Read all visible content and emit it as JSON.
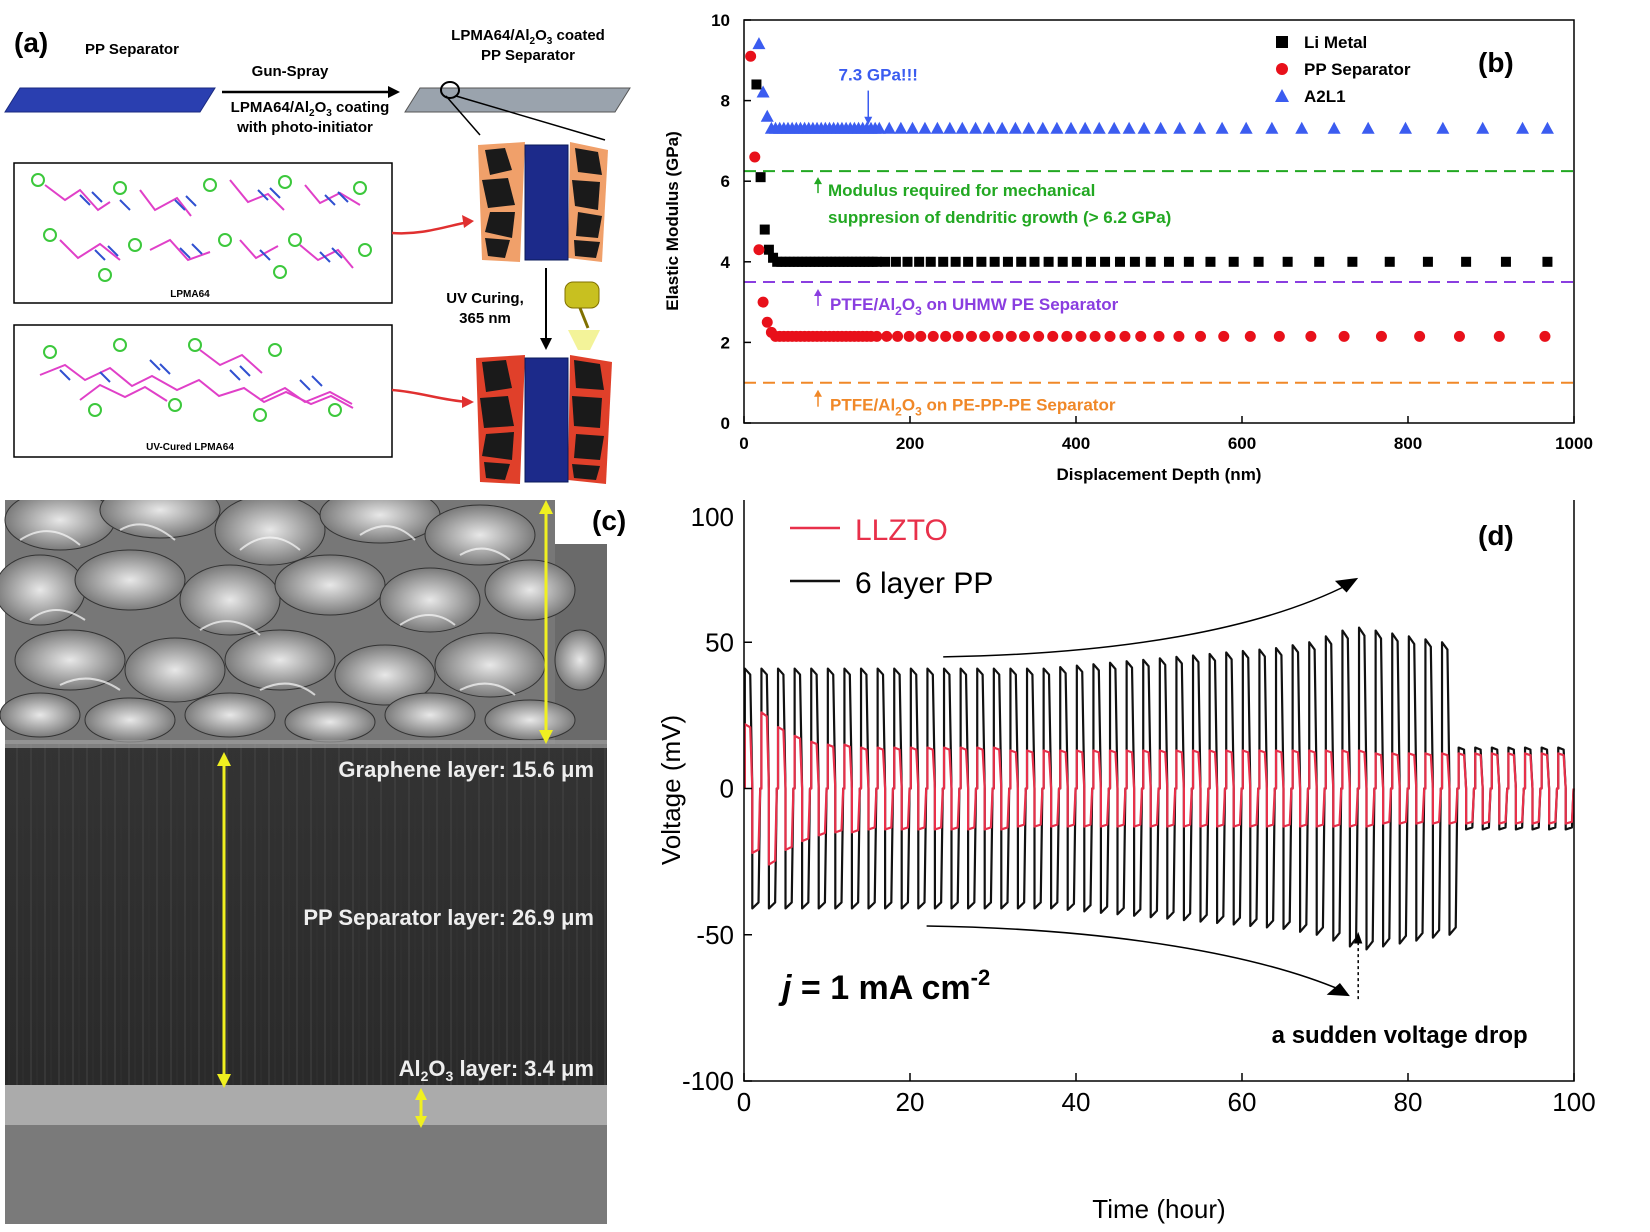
{
  "panel_a": {
    "label": "(a)",
    "pp_separator": "PP Separator",
    "gun_spray": "Gun-Spray",
    "coating_line1": "LPMA64/Al",
    "coating_sub": "2",
    "coating_mid": "O",
    "coating_sub2": "3",
    "coating_end": " coating",
    "coating_line2": "with photo-initiator",
    "coated_line1": "LPMA64/Al",
    "coated_sub": "2",
    "coated_mid": "O",
    "coated_sub2": "3",
    "coated_end": " coated",
    "coated_line2": "PP Separator",
    "box1_label": "LPMA64",
    "box2_label": "UV-Cured LPMA64",
    "uv_line1": "UV Curing,",
    "uv_line2": "365 nm",
    "colors": {
      "separator_blue": "#2a3fb0",
      "coated_gray": "#9aa3ad",
      "shell_orange": "#f0a06a",
      "shell_red": "#e0402a",
      "molecule_pink": "#e040c8",
      "molecule_green": "#3cc83c",
      "molecule_blue": "#3050d0"
    }
  },
  "panel_b_label": "(b)",
  "panel_c": {
    "label": "(c)",
    "graphene": "Graphene layer: 15.6 μm",
    "pp": "PP Separator layer: 26.9 μm",
    "al_prefix": "Al",
    "al_sub1": "2",
    "al_mid": "O",
    "al_sub2": "3",
    "al_suffix": " layer: 3.4 μm",
    "colors": {
      "arrow": "#f0f020"
    }
  },
  "panel_d_label": "(d)",
  "chart_data": [
    {
      "type": "scatter",
      "xlabel": "Displacement Depth (nm)",
      "ylabel": "Elastic Modulus (GPa)",
      "xlim": [
        0,
        1000
      ],
      "ylim": [
        0,
        10
      ],
      "x_ticks": [
        0,
        200,
        400,
        600,
        800,
        1000
      ],
      "y_ticks": [
        0,
        2,
        4,
        6,
        8,
        10
      ],
      "legend_position": "top-right",
      "series": [
        {
          "name": "Li Metal",
          "marker": "square",
          "color": "#000000",
          "x": [
            15,
            20,
            25,
            30,
            35,
            40,
            45,
            50,
            55,
            60,
            65,
            70,
            75,
            80,
            85,
            90,
            95,
            100,
            105,
            110,
            115,
            120,
            125,
            130,
            135,
            140,
            145,
            150,
            155,
            160,
            170,
            183,
            197,
            211,
            225,
            240,
            255,
            270,
            286,
            302,
            318,
            334,
            350,
            367,
            384,
            401,
            418,
            435,
            453,
            471,
            490,
            512,
            536,
            562,
            590,
            620,
            655,
            693,
            733,
            778,
            824,
            870,
            918,
            968
          ],
          "y": [
            8.4,
            6.1,
            4.8,
            4.3,
            4.1,
            4,
            4,
            4,
            4,
            4,
            4,
            4,
            4,
            4,
            4,
            4,
            4,
            4,
            4,
            4,
            4,
            4,
            4,
            4,
            4,
            4,
            4,
            4,
            4,
            4,
            4,
            4,
            4,
            4,
            4,
            4,
            4,
            4,
            4,
            4,
            4,
            4,
            4,
            4,
            4,
            4,
            4,
            4,
            4,
            4,
            4,
            4,
            4,
            4,
            4,
            4,
            4,
            4,
            4,
            4,
            4,
            4,
            4,
            4
          ]
        },
        {
          "name": "PP Separator",
          "marker": "circle",
          "color": "#e8101a",
          "x": [
            8,
            13,
            18,
            23,
            28,
            33,
            38,
            43,
            48,
            53,
            58,
            63,
            68,
            73,
            78,
            83,
            88,
            93,
            98,
            103,
            108,
            113,
            118,
            123,
            128,
            133,
            138,
            143,
            148,
            153,
            160,
            172,
            185,
            199,
            213,
            228,
            243,
            258,
            274,
            290,
            306,
            322,
            338,
            355,
            372,
            389,
            406,
            423,
            441,
            459,
            478,
            500,
            524,
            550,
            578,
            610,
            645,
            683,
            723,
            768,
            814,
            862,
            910,
            965
          ],
          "y": [
            9.1,
            6.6,
            4.3,
            3,
            2.5,
            2.25,
            2.15,
            2.15,
            2.15,
            2.15,
            2.15,
            2.15,
            2.15,
            2.15,
            2.15,
            2.15,
            2.15,
            2.15,
            2.15,
            2.15,
            2.15,
            2.15,
            2.15,
            2.15,
            2.15,
            2.15,
            2.15,
            2.15,
            2.15,
            2.15,
            2.15,
            2.15,
            2.15,
            2.15,
            2.15,
            2.15,
            2.15,
            2.15,
            2.15,
            2.15,
            2.15,
            2.15,
            2.15,
            2.15,
            2.15,
            2.15,
            2.15,
            2.15,
            2.15,
            2.15,
            2.15,
            2.15,
            2.15,
            2.15,
            2.15,
            2.15,
            2.15,
            2.15,
            2.15,
            2.15,
            2.15,
            2.15,
            2.15,
            2.15
          ]
        },
        {
          "name": "A2L1",
          "marker": "triangle",
          "color": "#3b5cf0",
          "x": [
            18,
            23,
            28,
            33,
            38,
            43,
            48,
            53,
            58,
            63,
            68,
            73,
            78,
            83,
            88,
            93,
            98,
            103,
            108,
            113,
            118,
            123,
            128,
            133,
            138,
            143,
            148,
            153,
            158,
            163,
            175,
            189,
            203,
            218,
            233,
            248,
            263,
            279,
            295,
            311,
            327,
            343,
            360,
            377,
            394,
            411,
            428,
            446,
            464,
            482,
            502,
            525,
            549,
            576,
            605,
            636,
            672,
            711,
            752,
            797,
            842,
            890,
            938,
            968
          ],
          "y": [
            9.4,
            8.2,
            7.6,
            7.3,
            7.3,
            7.3,
            7.3,
            7.3,
            7.3,
            7.3,
            7.3,
            7.3,
            7.3,
            7.3,
            7.3,
            7.3,
            7.3,
            7.3,
            7.3,
            7.3,
            7.3,
            7.3,
            7.3,
            7.3,
            7.3,
            7.3,
            7.3,
            7.3,
            7.3,
            7.3,
            7.3,
            7.3,
            7.3,
            7.3,
            7.3,
            7.3,
            7.3,
            7.3,
            7.3,
            7.3,
            7.3,
            7.3,
            7.3,
            7.3,
            7.3,
            7.3,
            7.3,
            7.3,
            7.3,
            7.3,
            7.3,
            7.3,
            7.3,
            7.3,
            7.3,
            7.3,
            7.3,
            7.3,
            7.3,
            7.3,
            7.3,
            7.3,
            7.3,
            7.3
          ]
        }
      ],
      "reference_lines": [
        {
          "y": 6.25,
          "color": "#22a822",
          "label_line1": "Modulus required for mechanical",
          "label_line2": "suppresion of dendritic growth (> 6.2 GPa)"
        },
        {
          "y": 3.5,
          "color": "#8a3ee0",
          "label_prefix": "PTFE/Al",
          "label_sub1": "2",
          "label_mid": "O",
          "label_sub2": "3",
          "label_suffix": " on UHMW PE Separator"
        },
        {
          "y": 1,
          "color": "#f08828",
          "label_prefix": "PTFE/Al",
          "label_sub1": "2",
          "label_mid": "O",
          "label_sub2": "3",
          "label_suffix": " on PE-PP-PE Separator"
        }
      ],
      "annotation": {
        "text": "7.3 GPa!!!",
        "x": 128,
        "y": 8.1,
        "color": "#3b5cf0"
      }
    },
    {
      "type": "line",
      "xlabel": "Time (hour)",
      "ylabel": "Voltage (mV)",
      "xlim": [
        0,
        100
      ],
      "ylim": [
        -100,
        100
      ],
      "x_ticks": [
        0,
        20,
        40,
        60,
        80,
        100
      ],
      "y_ticks": [
        -100,
        -50,
        0,
        50,
        100
      ],
      "legend_position": "top-left",
      "cycle_period_h": 2,
      "series": [
        {
          "name": "LLZTO",
          "color": "#e8304a",
          "peak_times": [
            1,
            3,
            5,
            7,
            9,
            11,
            13,
            15,
            17,
            19,
            21,
            23,
            25,
            27,
            29,
            31,
            33,
            35,
            37,
            39,
            41,
            43,
            45,
            47,
            49,
            51,
            53,
            55,
            57,
            59,
            61,
            63,
            65,
            67,
            69,
            71,
            73,
            75,
            77,
            79,
            81,
            83,
            85,
            87,
            89,
            91,
            93,
            95,
            97,
            99
          ],
          "amplitude_mV": [
            22,
            26,
            21,
            18,
            16,
            15,
            15,
            14,
            14,
            14,
            14,
            14,
            14,
            14,
            14,
            14,
            13,
            13,
            13,
            13,
            13,
            13,
            13,
            13,
            13,
            13,
            13,
            13,
            13,
            13,
            13,
            13,
            13,
            13,
            13,
            13,
            13,
            13,
            12,
            12,
            12,
            12,
            12,
            12,
            12,
            12,
            12,
            12,
            12,
            12
          ]
        },
        {
          "name": "6 layer PP",
          "color": "#111111",
          "peak_times": [
            1,
            3,
            5,
            7,
            9,
            11,
            13,
            15,
            17,
            19,
            21,
            23,
            25,
            27,
            29,
            31,
            33,
            35,
            37,
            39,
            41,
            43,
            45,
            47,
            49,
            51,
            53,
            55,
            57,
            59,
            61,
            63,
            65,
            67,
            69,
            71,
            73,
            75,
            77,
            79,
            81,
            83,
            85,
            87,
            89,
            91,
            93,
            95,
            97,
            99
          ],
          "amplitude_mV": [
            41,
            41,
            41,
            41,
            41,
            41,
            41,
            41,
            41,
            41,
            41,
            41,
            41,
            41,
            41,
            41,
            41,
            41,
            41,
            41.5,
            42,
            42.5,
            43,
            43.5,
            44,
            44.5,
            45,
            45.5,
            46,
            46.5,
            47,
            47.5,
            48,
            49,
            50,
            52,
            54,
            55,
            54,
            53,
            52,
            51,
            50,
            14,
            14,
            14,
            14,
            14,
            14,
            14
          ]
        }
      ],
      "annotations": [
        {
          "text": "j = 1 mA cm-2"
        },
        {
          "text": "a sudden voltage drop",
          "x": 74,
          "y": -77
        }
      ]
    }
  ]
}
